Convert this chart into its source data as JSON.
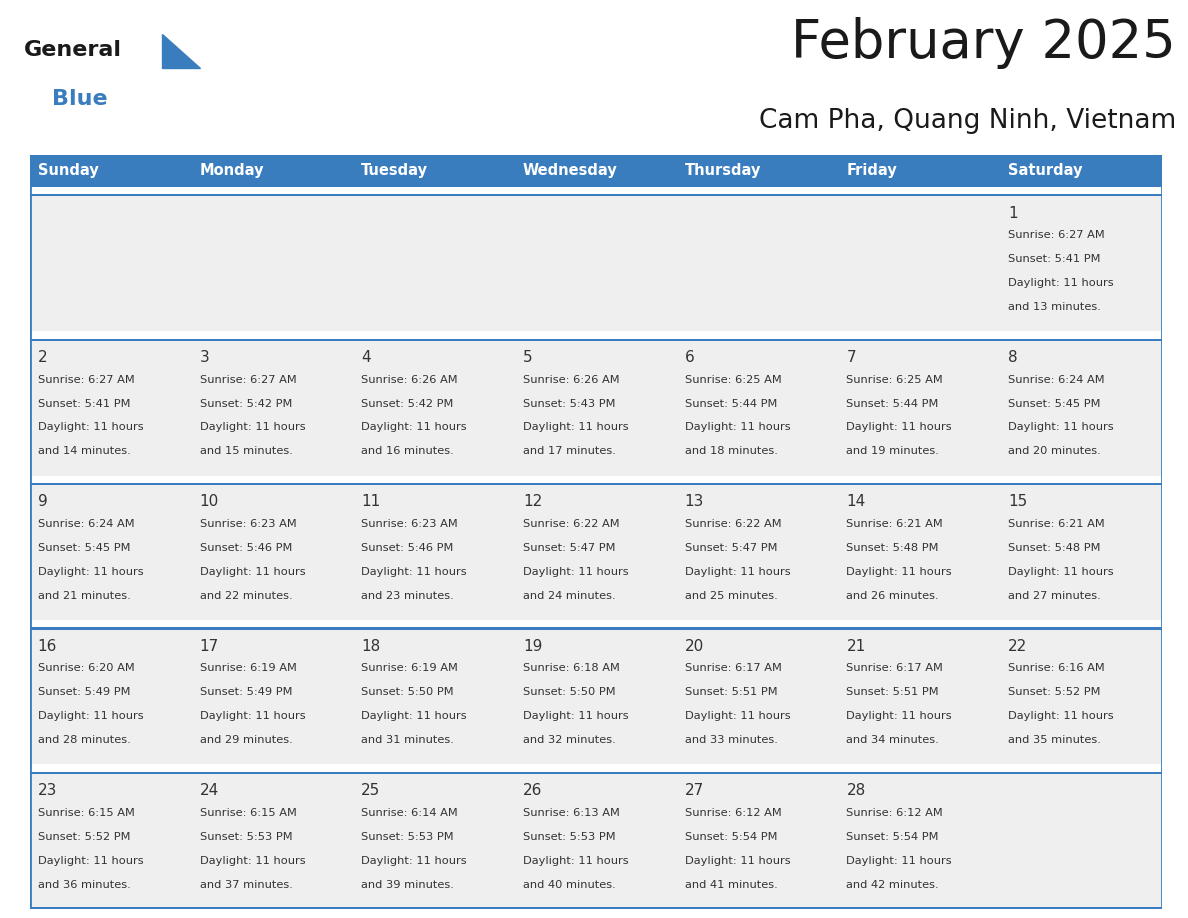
{
  "title": "February 2025",
  "subtitle": "Cam Pha, Quang Ninh, Vietnam",
  "header_color": "#3a7dbf",
  "header_text_color": "#ffffff",
  "cell_bg_color": "#efefef",
  "white_gap_color": "#ffffff",
  "border_color": "#3a7dbf",
  "text_color": "#333333",
  "day_number_color": "#333333",
  "days_of_week": [
    "Sunday",
    "Monday",
    "Tuesday",
    "Wednesday",
    "Thursday",
    "Friday",
    "Saturday"
  ],
  "logo_general_color": "#1a1a1a",
  "logo_blue_color": "#3a7dbf",
  "logo_triangle_color": "#3a7dbf",
  "calendar_data": [
    [
      null,
      null,
      null,
      null,
      null,
      null,
      {
        "day": 1,
        "sunrise": "6:27 AM",
        "sunset": "5:41 PM",
        "daylight": "11 hours and 13 minutes."
      }
    ],
    [
      {
        "day": 2,
        "sunrise": "6:27 AM",
        "sunset": "5:41 PM",
        "daylight": "11 hours and 14 minutes."
      },
      {
        "day": 3,
        "sunrise": "6:27 AM",
        "sunset": "5:42 PM",
        "daylight": "11 hours and 15 minutes."
      },
      {
        "day": 4,
        "sunrise": "6:26 AM",
        "sunset": "5:42 PM",
        "daylight": "11 hours and 16 minutes."
      },
      {
        "day": 5,
        "sunrise": "6:26 AM",
        "sunset": "5:43 PM",
        "daylight": "11 hours and 17 minutes."
      },
      {
        "day": 6,
        "sunrise": "6:25 AM",
        "sunset": "5:44 PM",
        "daylight": "11 hours and 18 minutes."
      },
      {
        "day": 7,
        "sunrise": "6:25 AM",
        "sunset": "5:44 PM",
        "daylight": "11 hours and 19 minutes."
      },
      {
        "day": 8,
        "sunrise": "6:24 AM",
        "sunset": "5:45 PM",
        "daylight": "11 hours and 20 minutes."
      }
    ],
    [
      {
        "day": 9,
        "sunrise": "6:24 AM",
        "sunset": "5:45 PM",
        "daylight": "11 hours and 21 minutes."
      },
      {
        "day": 10,
        "sunrise": "6:23 AM",
        "sunset": "5:46 PM",
        "daylight": "11 hours and 22 minutes."
      },
      {
        "day": 11,
        "sunrise": "6:23 AM",
        "sunset": "5:46 PM",
        "daylight": "11 hours and 23 minutes."
      },
      {
        "day": 12,
        "sunrise": "6:22 AM",
        "sunset": "5:47 PM",
        "daylight": "11 hours and 24 minutes."
      },
      {
        "day": 13,
        "sunrise": "6:22 AM",
        "sunset": "5:47 PM",
        "daylight": "11 hours and 25 minutes."
      },
      {
        "day": 14,
        "sunrise": "6:21 AM",
        "sunset": "5:48 PM",
        "daylight": "11 hours and 26 minutes."
      },
      {
        "day": 15,
        "sunrise": "6:21 AM",
        "sunset": "5:48 PM",
        "daylight": "11 hours and 27 minutes."
      }
    ],
    [
      {
        "day": 16,
        "sunrise": "6:20 AM",
        "sunset": "5:49 PM",
        "daylight": "11 hours and 28 minutes."
      },
      {
        "day": 17,
        "sunrise": "6:19 AM",
        "sunset": "5:49 PM",
        "daylight": "11 hours and 29 minutes."
      },
      {
        "day": 18,
        "sunrise": "6:19 AM",
        "sunset": "5:50 PM",
        "daylight": "11 hours and 31 minutes."
      },
      {
        "day": 19,
        "sunrise": "6:18 AM",
        "sunset": "5:50 PM",
        "daylight": "11 hours and 32 minutes."
      },
      {
        "day": 20,
        "sunrise": "6:17 AM",
        "sunset": "5:51 PM",
        "daylight": "11 hours and 33 minutes."
      },
      {
        "day": 21,
        "sunrise": "6:17 AM",
        "sunset": "5:51 PM",
        "daylight": "11 hours and 34 minutes."
      },
      {
        "day": 22,
        "sunrise": "6:16 AM",
        "sunset": "5:52 PM",
        "daylight": "11 hours and 35 minutes."
      }
    ],
    [
      {
        "day": 23,
        "sunrise": "6:15 AM",
        "sunset": "5:52 PM",
        "daylight": "11 hours and 36 minutes."
      },
      {
        "day": 24,
        "sunrise": "6:15 AM",
        "sunset": "5:53 PM",
        "daylight": "11 hours and 37 minutes."
      },
      {
        "day": 25,
        "sunrise": "6:14 AM",
        "sunset": "5:53 PM",
        "daylight": "11 hours and 39 minutes."
      },
      {
        "day": 26,
        "sunrise": "6:13 AM",
        "sunset": "5:53 PM",
        "daylight": "11 hours and 40 minutes."
      },
      {
        "day": 27,
        "sunrise": "6:12 AM",
        "sunset": "5:54 PM",
        "daylight": "11 hours and 41 minutes."
      },
      {
        "day": 28,
        "sunrise": "6:12 AM",
        "sunset": "5:54 PM",
        "daylight": "11 hours and 42 minutes."
      },
      null
    ]
  ]
}
